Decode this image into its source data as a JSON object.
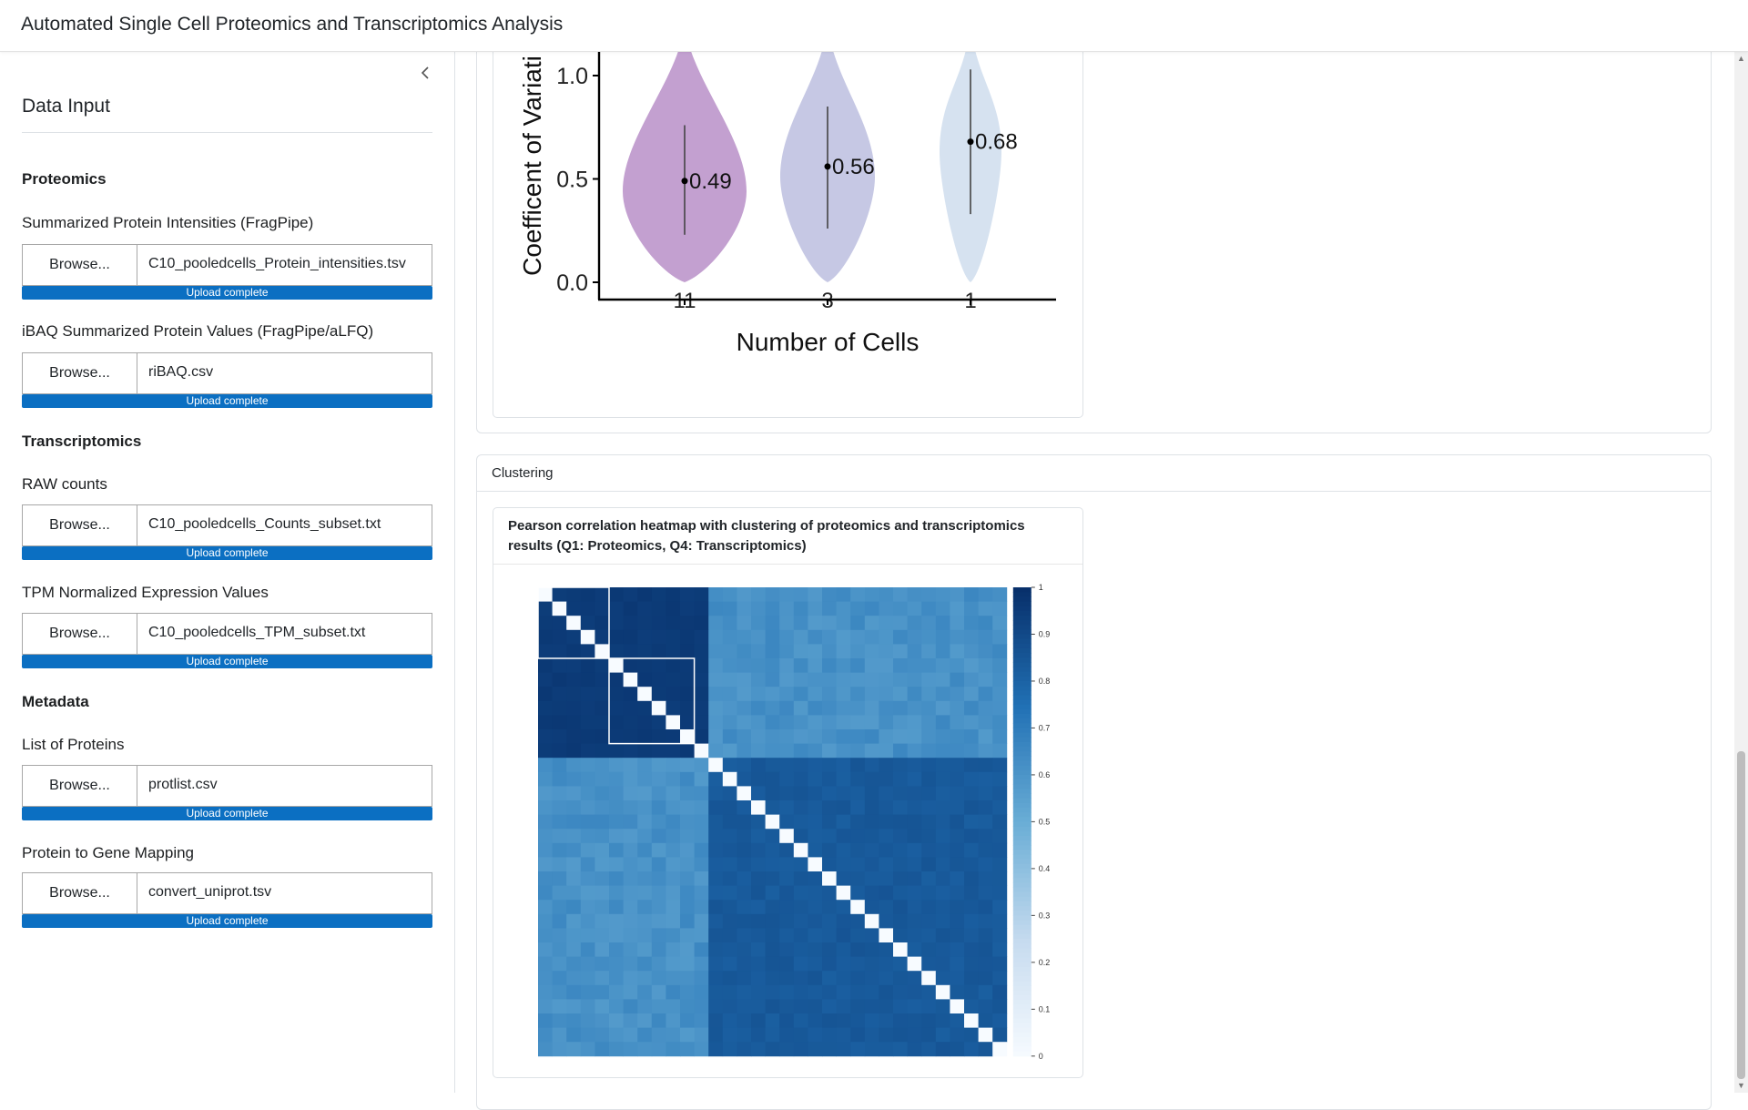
{
  "app": {
    "title": "Automated Single Cell Proteomics and Transcriptomics Analysis"
  },
  "sidebar": {
    "collapse_icon": "chevron-left-icon",
    "title": "Data Input",
    "sections": [
      {
        "heading": "Proteomics",
        "inputs": [
          {
            "label": "Summarized Protein Intensities (FragPipe)",
            "button": "Browse...",
            "file": "C10_pooledcells_Protein_intensities.tsv",
            "status": "Upload complete",
            "progress": 1.0
          },
          {
            "label": "iBAQ Summarized Protein Values (FragPipe/aLFQ)",
            "button": "Browse...",
            "file": "riBAQ.csv",
            "status": "Upload complete",
            "progress": 1.0
          }
        ]
      },
      {
        "heading": "Transcriptomics",
        "inputs": [
          {
            "label": "RAW counts",
            "button": "Browse...",
            "file": "C10_pooledcells_Counts_subset.txt",
            "status": "Upload complete",
            "progress": 1.0
          },
          {
            "label": "TPM Normalized Expression Values",
            "button": "Browse...",
            "file": "C10_pooledcells_TPM_subset.txt",
            "status": "Upload complete",
            "progress": 1.0
          }
        ]
      },
      {
        "heading": "Metadata",
        "inputs": [
          {
            "label": "List of Proteins",
            "button": "Browse...",
            "file": "protlist.csv",
            "status": "Upload complete",
            "progress": 1.0
          },
          {
            "label": "Protein to Gene Mapping",
            "button": "Browse...",
            "file": "convert_uniprot.tsv",
            "status": "Upload complete",
            "progress": 1.0
          }
        ]
      }
    ]
  },
  "main": {
    "clustering_card": {
      "title": "Clustering",
      "plot_title": "Pearson correlation heatmap with clustering of proteomics and transcriptomics results (Q1: Proteomics, Q4: Transcriptomics)"
    }
  },
  "colors": {
    "accent": "#0b6fc2",
    "violin_1": "#c3a0d0",
    "violin_2": "#c6c8e4",
    "violin_3": "#d6e2f0",
    "heat_high": "#08306b",
    "heat_low": "#f7fbff"
  },
  "chart_data": [
    {
      "type": "violin",
      "ylabel": "Coefficent of Variati",
      "xlabel": "Number of Cells",
      "categories": [
        "11",
        "3",
        "1"
      ],
      "medians": [
        0.49,
        0.56,
        0.68
      ],
      "median_labels": [
        "0.49",
        "0.56",
        "0.68"
      ],
      "whisker_low": [
        0.23,
        0.26,
        0.33
      ],
      "whisker_high": [
        0.76,
        0.85,
        1.03
      ],
      "yticks": [
        "0.0",
        "0.5",
        "1.0"
      ],
      "ylim": [
        -0.08,
        1.15
      ]
    },
    {
      "type": "heatmap",
      "n": 33,
      "group_a_size": 12,
      "blocks_a": [
        5,
        6
      ],
      "colorbar_ticks": [
        "0",
        "0.1",
        "0.2",
        "0.3",
        "0.4",
        "0.5",
        "0.6",
        "0.7",
        "0.8",
        "0.9",
        "1"
      ],
      "within_proteomics": 0.96,
      "within_transcriptomics": 0.84,
      "between_groups": 0.62,
      "diagonal": 0.0
    }
  ]
}
